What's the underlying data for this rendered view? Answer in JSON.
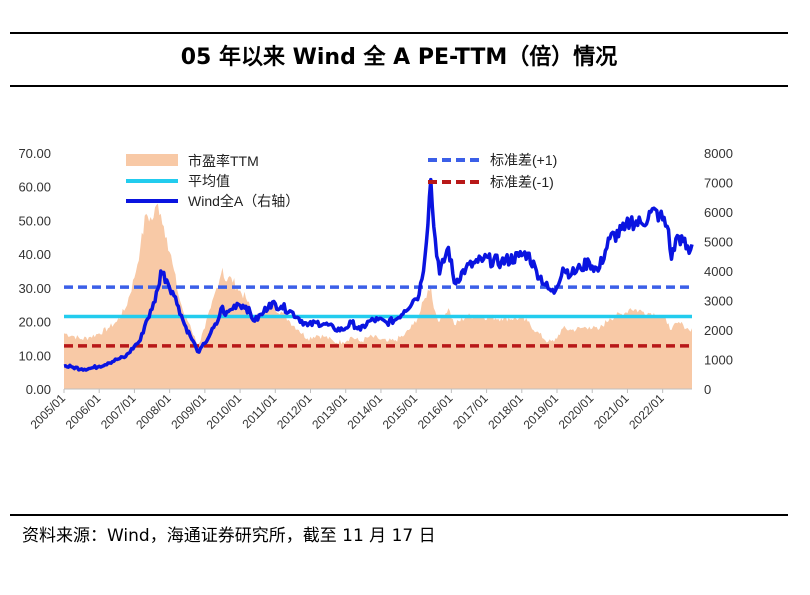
{
  "header": {
    "title": "05 年以来 Wind 全 A PE-TTM（倍）情况"
  },
  "footer": {
    "source": "资料来源：Wind，海通证券研究所，截至 11 月 17 日"
  },
  "chart_data": {
    "type": "area",
    "title": "05 年以来 Wind 全 A PE-TTM（倍）情况",
    "y_left": {
      "lim": [
        0,
        70
      ],
      "ticks": [
        "0.00",
        "10.00",
        "20.00",
        "30.00",
        "40.00",
        "50.00",
        "60.00",
        "70.00"
      ]
    },
    "y_right": {
      "lim": [
        0,
        8000
      ],
      "ticks": [
        "0",
        "1000",
        "2000",
        "3000",
        "4000",
        "5000",
        "6000",
        "7000",
        "8000"
      ]
    },
    "x_ticks": [
      "2005/01",
      "2006/01",
      "2007/01",
      "2008/01",
      "2009/01",
      "2010/01",
      "2011/01",
      "2012/01",
      "2013/01",
      "2014/01",
      "2015/01",
      "2016/01",
      "2017/01",
      "2018/01",
      "2019/01",
      "2020/01",
      "2021/01",
      "2022/01"
    ],
    "x_range": [
      "2005/01",
      "2022/11"
    ],
    "legend": {
      "pe": "市盈率TTM",
      "mean": "平均值",
      "index": "Wind全A（右轴）",
      "plus1": "标准差(+1)",
      "minus1": "标准差(-1)"
    },
    "colors": {
      "pe": "#f8c9a6",
      "mean": "#22ccee",
      "index": "#0a14e0",
      "plus1": "#3b5fe8",
      "minus1": "#b81818"
    },
    "reference_lines": {
      "mean": 21.5,
      "plus1": 30.2,
      "minus1": 12.8
    },
    "pe_series": {
      "name": "市盈率TTM",
      "axis": "left",
      "points": [
        [
          "2005/01",
          16.5
        ],
        [
          "2005/04",
          15.8
        ],
        [
          "2005/07",
          14.8
        ],
        [
          "2005/10",
          15.5
        ],
        [
          "2006/01",
          16.5
        ],
        [
          "2006/04",
          18.0
        ],
        [
          "2006/07",
          20.0
        ],
        [
          "2006/10",
          24.0
        ],
        [
          "2007/01",
          33.0
        ],
        [
          "2007/03",
          42.0
        ],
        [
          "2007/05",
          52.0
        ],
        [
          "2007/07",
          50.0
        ],
        [
          "2007/09",
          55.0
        ],
        [
          "2007/10",
          52.0
        ],
        [
          "2007/12",
          45.0
        ],
        [
          "2008/02",
          37.0
        ],
        [
          "2008/04",
          28.0
        ],
        [
          "2008/06",
          22.0
        ],
        [
          "2008/08",
          19.0
        ],
        [
          "2008/10",
          14.0
        ],
        [
          "2008/11",
          13.5
        ],
        [
          "2009/01",
          18.0
        ],
        [
          "2009/03",
          24.0
        ],
        [
          "2009/05",
          30.0
        ],
        [
          "2009/07",
          36.0
        ],
        [
          "2009/08",
          32.0
        ],
        [
          "2009/10",
          33.0
        ],
        [
          "2009/12",
          30.0
        ],
        [
          "2010/03",
          27.0
        ],
        [
          "2010/06",
          21.0
        ],
        [
          "2010/09",
          23.0
        ],
        [
          "2010/11",
          25.0
        ],
        [
          "2011/03",
          23.0
        ],
        [
          "2011/06",
          20.0
        ],
        [
          "2011/09",
          17.5
        ],
        [
          "2011/12",
          15.0
        ],
        [
          "2012/03",
          16.0
        ],
        [
          "2012/06",
          15.5
        ],
        [
          "2012/09",
          14.0
        ],
        [
          "2012/12",
          14.0
        ],
        [
          "2013/03",
          15.5
        ],
        [
          "2013/06",
          14.0
        ],
        [
          "2013/09",
          15.5
        ],
        [
          "2013/12",
          15.0
        ],
        [
          "2014/03",
          14.0
        ],
        [
          "2014/06",
          14.5
        ],
        [
          "2014/09",
          16.0
        ],
        [
          "2014/12",
          19.0
        ],
        [
          "2015/02",
          22.0
        ],
        [
          "2015/04",
          27.0
        ],
        [
          "2015/06",
          31.0
        ],
        [
          "2015/07",
          24.0
        ],
        [
          "2015/09",
          20.0
        ],
        [
          "2015/12",
          24.0
        ],
        [
          "2016/02",
          19.0
        ],
        [
          "2016/06",
          21.5
        ],
        [
          "2016/10",
          22.0
        ],
        [
          "2016/12",
          21.5
        ],
        [
          "2017/06",
          21.0
        ],
        [
          "2017/12",
          21.0
        ],
        [
          "2018/03",
          20.0
        ],
        [
          "2018/06",
          17.0
        ],
        [
          "2018/10",
          14.0
        ],
        [
          "2018/12",
          14.0
        ],
        [
          "2019/03",
          18.0
        ],
        [
          "2019/06",
          17.5
        ],
        [
          "2019/09",
          18.0
        ],
        [
          "2019/12",
          18.5
        ],
        [
          "2020/03",
          17.5
        ],
        [
          "2020/07",
          21.0
        ],
        [
          "2020/12",
          22.5
        ],
        [
          "2021/02",
          24.0
        ],
        [
          "2021/06",
          23.0
        ],
        [
          "2021/09",
          22.5
        ],
        [
          "2021/12",
          22.0
        ],
        [
          "2022/03",
          19.5
        ],
        [
          "2022/04",
          17.5
        ],
        [
          "2022/06",
          19.5
        ],
        [
          "2022/08",
          19.0
        ],
        [
          "2022/10",
          17.5
        ],
        [
          "2022/11",
          18.0
        ]
      ]
    },
    "index_series": {
      "name": "Wind全A（右轴）",
      "axis": "right",
      "points": [
        [
          "2005/01",
          780
        ],
        [
          "2005/04",
          740
        ],
        [
          "2005/07",
          680
        ],
        [
          "2005/10",
          700
        ],
        [
          "2006/01",
          770
        ],
        [
          "2006/04",
          880
        ],
        [
          "2006/07",
          1000
        ],
        [
          "2006/10",
          1100
        ],
        [
          "2007/01",
          1450
        ],
        [
          "2007/03",
          1650
        ],
        [
          "2007/05",
          2300
        ],
        [
          "2007/07",
          2700
        ],
        [
          "2007/09",
          3400
        ],
        [
          "2007/10",
          4000
        ],
        [
          "2007/12",
          3700
        ],
        [
          "2008/02",
          3300
        ],
        [
          "2008/04",
          2800
        ],
        [
          "2008/06",
          2200
        ],
        [
          "2008/08",
          1800
        ],
        [
          "2008/10",
          1400
        ],
        [
          "2008/11",
          1250
        ],
        [
          "2009/01",
          1550
        ],
        [
          "2009/03",
          1900
        ],
        [
          "2009/05",
          2200
        ],
        [
          "2009/07",
          2800
        ],
        [
          "2009/08",
          2500
        ],
        [
          "2009/10",
          2700
        ],
        [
          "2009/12",
          2900
        ],
        [
          "2010/03",
          2800
        ],
        [
          "2010/06",
          2300
        ],
        [
          "2010/09",
          2600
        ],
        [
          "2010/11",
          2900
        ],
        [
          "2011/03",
          2800
        ],
        [
          "2011/06",
          2650
        ],
        [
          "2011/09",
          2400
        ],
        [
          "2011/12",
          2150
        ],
        [
          "2012/03",
          2250
        ],
        [
          "2012/06",
          2200
        ],
        [
          "2012/09",
          2050
        ],
        [
          "2012/12",
          2000
        ],
        [
          "2013/03",
          2250
        ],
        [
          "2013/06",
          2000
        ],
        [
          "2013/09",
          2300
        ],
        [
          "2013/12",
          2350
        ],
        [
          "2014/03",
          2250
        ],
        [
          "2014/06",
          2350
        ],
        [
          "2014/09",
          2650
        ],
        [
          "2014/12",
          3000
        ],
        [
          "2015/02",
          3200
        ],
        [
          "2015/04",
          4500
        ],
        [
          "2015/06",
          7100
        ],
        [
          "2015/07",
          5500
        ],
        [
          "2015/09",
          3900
        ],
        [
          "2015/12",
          4800
        ],
        [
          "2016/02",
          3600
        ],
        [
          "2016/06",
          4100
        ],
        [
          "2016/10",
          4300
        ],
        [
          "2016/12",
          4400
        ],
        [
          "2017/06",
          4300
        ],
        [
          "2017/12",
          4500
        ],
        [
          "2018/03",
          4600
        ],
        [
          "2018/06",
          4000
        ],
        [
          "2018/10",
          3400
        ],
        [
          "2018/12",
          3250
        ],
        [
          "2019/03",
          4100
        ],
        [
          "2019/06",
          3900
        ],
        [
          "2019/09",
          4100
        ],
        [
          "2019/12",
          4300
        ],
        [
          "2020/03",
          4000
        ],
        [
          "2020/07",
          5100
        ],
        [
          "2020/12",
          5400
        ],
        [
          "2021/02",
          5700
        ],
        [
          "2021/06",
          5600
        ],
        [
          "2021/09",
          6000
        ],
        [
          "2021/12",
          5900
        ],
        [
          "2022/03",
          5400
        ],
        [
          "2022/04",
          4400
        ],
        [
          "2022/06",
          5200
        ],
        [
          "2022/08",
          5000
        ],
        [
          "2022/10",
          4600
        ],
        [
          "2022/11",
          4900
        ]
      ]
    }
  }
}
